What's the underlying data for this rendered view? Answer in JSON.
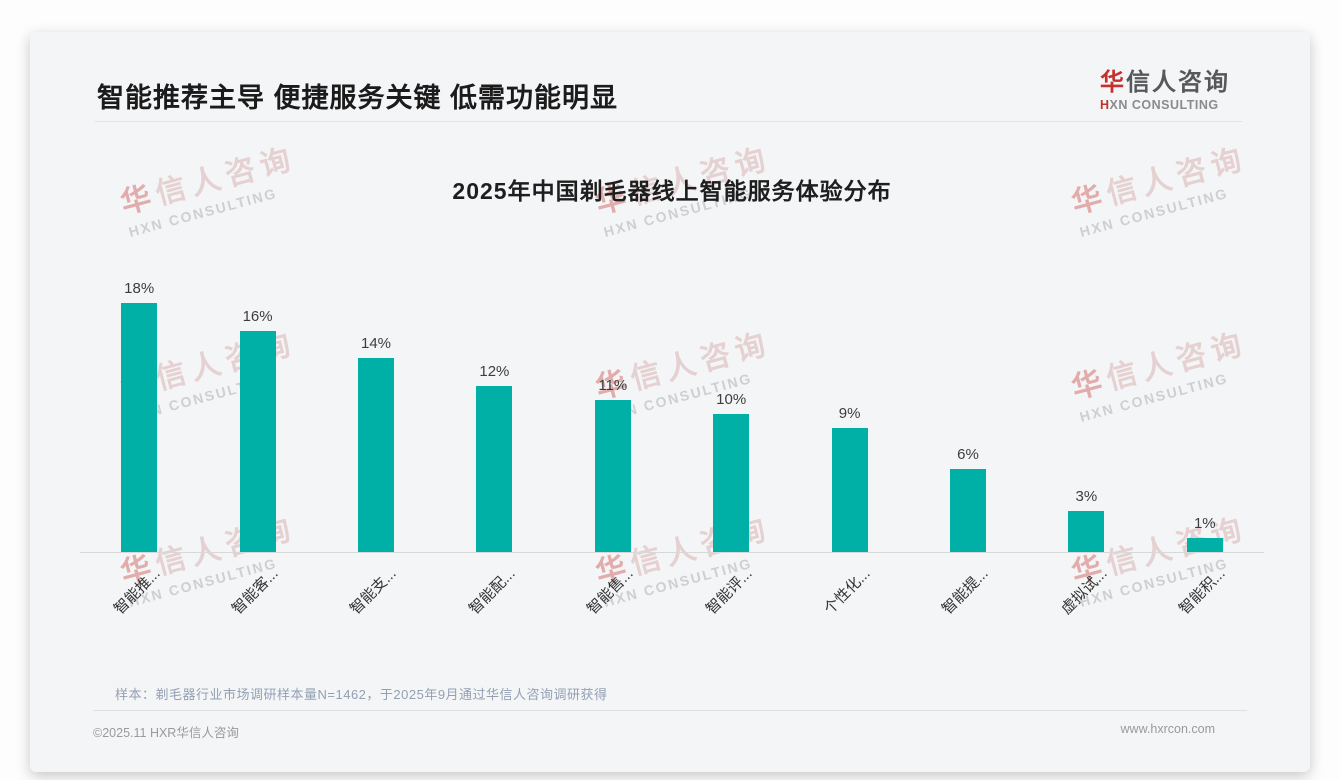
{
  "header": {
    "title": "智能推荐主导 便捷服务关键 低需功能明显"
  },
  "logo": {
    "cn_accent": "华",
    "cn_rest": "信人咨询",
    "en_accent": "H",
    "en_rest": "XN CONSULTING"
  },
  "watermark": {
    "cn_accent": "华",
    "cn_rest": "信人咨询",
    "en": "HXN CONSULTING"
  },
  "chart_data": {
    "type": "bar",
    "title": "2025年中国剃毛器线上智能服务体验分布",
    "categories": [
      "智能推...",
      "智能客...",
      "智能支...",
      "智能配...",
      "智能售...",
      "智能评...",
      "个性化...",
      "智能提...",
      "虚拟试...",
      "智能积..."
    ],
    "values": [
      18,
      16,
      14,
      12,
      11,
      10,
      9,
      6,
      3,
      1
    ],
    "unit": "%",
    "xlabel": "",
    "ylabel": "",
    "ylim": [
      0,
      20
    ],
    "grid": false,
    "legend": false,
    "bar_color": "#00b0a6",
    "axis_line_color": "#d8d8d8",
    "value_label_color": "#3d3d3d"
  },
  "footnote": "样本：剃毛器行业市场调研样本量N=1462，于2025年9月通过华信人咨询调研获得",
  "footer": {
    "left": "©2025.11 HXR华信人咨询",
    "right": "www.hxrcon.com"
  }
}
